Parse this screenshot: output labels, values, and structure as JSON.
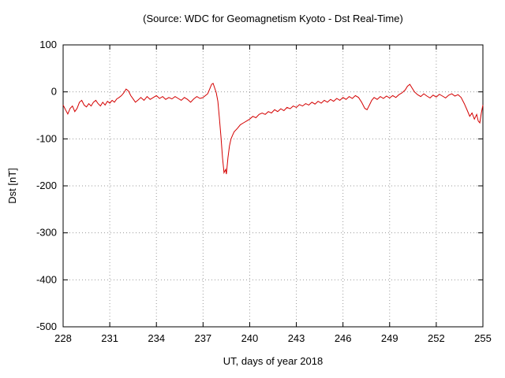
{
  "title": "(Source: WDC for Geomagnetism Kyoto - Dst Real-Time)",
  "chart_data": {
    "type": "line",
    "title": "(Source: WDC for Geomagnetism Kyoto - Dst Real-Time)",
    "xlabel": "UT, days of year 2018",
    "ylabel": "Dst [nT]",
    "xlim": [
      228,
      255
    ],
    "ylim": [
      -500,
      100
    ],
    "xticks": [
      228,
      231,
      234,
      237,
      240,
      243,
      246,
      249,
      252,
      255
    ],
    "yticks": [
      -500,
      -400,
      -300,
      -200,
      -100,
      0,
      100
    ],
    "grid": "dotted",
    "grid_color": "#9a9a9a",
    "frame_color": "#000000",
    "line_color": "#d40000",
    "legend": "none",
    "series": [
      {
        "name": "Dst",
        "points": [
          [
            228.0,
            -28
          ],
          [
            228.15,
            -38
          ],
          [
            228.3,
            -47
          ],
          [
            228.45,
            -35
          ],
          [
            228.6,
            -30
          ],
          [
            228.75,
            -42
          ],
          [
            228.9,
            -35
          ],
          [
            229.05,
            -22
          ],
          [
            229.2,
            -18
          ],
          [
            229.35,
            -28
          ],
          [
            229.5,
            -32
          ],
          [
            229.65,
            -25
          ],
          [
            229.8,
            -30
          ],
          [
            229.95,
            -22
          ],
          [
            230.1,
            -18
          ],
          [
            230.25,
            -25
          ],
          [
            230.4,
            -30
          ],
          [
            230.55,
            -22
          ],
          [
            230.7,
            -28
          ],
          [
            230.85,
            -20
          ],
          [
            231.0,
            -24
          ],
          [
            231.15,
            -18
          ],
          [
            231.3,
            -22
          ],
          [
            231.45,
            -15
          ],
          [
            231.6,
            -12
          ],
          [
            231.75,
            -8
          ],
          [
            231.9,
            -2
          ],
          [
            232.05,
            6
          ],
          [
            232.2,
            2
          ],
          [
            232.35,
            -8
          ],
          [
            232.5,
            -15
          ],
          [
            232.65,
            -22
          ],
          [
            232.8,
            -18
          ],
          [
            233.0,
            -12
          ],
          [
            233.2,
            -18
          ],
          [
            233.4,
            -10
          ],
          [
            233.6,
            -16
          ],
          [
            233.8,
            -12
          ],
          [
            234.0,
            -8
          ],
          [
            234.2,
            -14
          ],
          [
            234.4,
            -10
          ],
          [
            234.6,
            -16
          ],
          [
            234.8,
            -12
          ],
          [
            235.0,
            -15
          ],
          [
            235.2,
            -10
          ],
          [
            235.4,
            -14
          ],
          [
            235.6,
            -18
          ],
          [
            235.8,
            -12
          ],
          [
            236.0,
            -16
          ],
          [
            236.2,
            -22
          ],
          [
            236.4,
            -15
          ],
          [
            236.6,
            -10
          ],
          [
            236.8,
            -14
          ],
          [
            237.0,
            -12
          ],
          [
            237.15,
            -8
          ],
          [
            237.3,
            -4
          ],
          [
            237.45,
            8
          ],
          [
            237.55,
            16
          ],
          [
            237.65,
            18
          ],
          [
            237.75,
            8
          ],
          [
            237.85,
            -2
          ],
          [
            237.95,
            -20
          ],
          [
            238.05,
            -55
          ],
          [
            238.15,
            -95
          ],
          [
            238.25,
            -140
          ],
          [
            238.35,
            -172
          ],
          [
            238.45,
            -165
          ],
          [
            238.5,
            -175
          ],
          [
            238.6,
            -140
          ],
          [
            238.7,
            -115
          ],
          [
            238.8,
            -100
          ],
          [
            238.9,
            -92
          ],
          [
            239.0,
            -85
          ],
          [
            239.2,
            -78
          ],
          [
            239.4,
            -70
          ],
          [
            239.6,
            -66
          ],
          [
            239.8,
            -62
          ],
          [
            240.0,
            -58
          ],
          [
            240.2,
            -52
          ],
          [
            240.4,
            -55
          ],
          [
            240.6,
            -48
          ],
          [
            240.8,
            -45
          ],
          [
            241.0,
            -48
          ],
          [
            241.2,
            -42
          ],
          [
            241.4,
            -45
          ],
          [
            241.6,
            -38
          ],
          [
            241.8,
            -42
          ],
          [
            242.0,
            -36
          ],
          [
            242.2,
            -40
          ],
          [
            242.4,
            -33
          ],
          [
            242.6,
            -36
          ],
          [
            242.8,
            -30
          ],
          [
            243.0,
            -33
          ],
          [
            243.2,
            -27
          ],
          [
            243.4,
            -30
          ],
          [
            243.6,
            -25
          ],
          [
            243.8,
            -28
          ],
          [
            244.0,
            -22
          ],
          [
            244.2,
            -26
          ],
          [
            244.4,
            -20
          ],
          [
            244.6,
            -24
          ],
          [
            244.8,
            -18
          ],
          [
            245.0,
            -22
          ],
          [
            245.2,
            -16
          ],
          [
            245.4,
            -20
          ],
          [
            245.6,
            -14
          ],
          [
            245.8,
            -18
          ],
          [
            246.0,
            -12
          ],
          [
            246.2,
            -16
          ],
          [
            246.4,
            -10
          ],
          [
            246.6,
            -14
          ],
          [
            246.8,
            -8
          ],
          [
            247.0,
            -12
          ],
          [
            247.2,
            -22
          ],
          [
            247.4,
            -35
          ],
          [
            247.55,
            -38
          ],
          [
            247.7,
            -28
          ],
          [
            247.85,
            -18
          ],
          [
            248.0,
            -12
          ],
          [
            248.2,
            -16
          ],
          [
            248.4,
            -10
          ],
          [
            248.6,
            -14
          ],
          [
            248.8,
            -9
          ],
          [
            249.0,
            -13
          ],
          [
            249.2,
            -8
          ],
          [
            249.4,
            -12
          ],
          [
            249.6,
            -6
          ],
          [
            249.8,
            -2
          ],
          [
            250.0,
            4
          ],
          [
            250.15,
            12
          ],
          [
            250.3,
            16
          ],
          [
            250.45,
            8
          ],
          [
            250.6,
            0
          ],
          [
            250.8,
            -6
          ],
          [
            251.0,
            -10
          ],
          [
            251.2,
            -4
          ],
          [
            251.4,
            -9
          ],
          [
            251.6,
            -13
          ],
          [
            251.8,
            -7
          ],
          [
            252.0,
            -11
          ],
          [
            252.2,
            -5
          ],
          [
            252.4,
            -9
          ],
          [
            252.6,
            -13
          ],
          [
            252.8,
            -7
          ],
          [
            253.0,
            -4
          ],
          [
            253.2,
            -9
          ],
          [
            253.4,
            -6
          ],
          [
            253.6,
            -12
          ],
          [
            253.8,
            -25
          ],
          [
            254.0,
            -40
          ],
          [
            254.15,
            -52
          ],
          [
            254.3,
            -45
          ],
          [
            254.45,
            -58
          ],
          [
            254.6,
            -48
          ],
          [
            254.7,
            -62
          ],
          [
            254.8,
            -66
          ],
          [
            254.9,
            -45
          ],
          [
            255.0,
            -28
          ]
        ]
      }
    ]
  }
}
